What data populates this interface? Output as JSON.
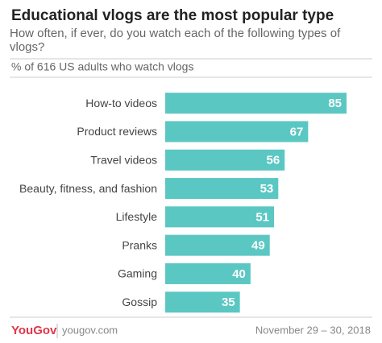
{
  "chart_data": {
    "type": "bar",
    "orientation": "horizontal",
    "title": "Educational vlogs are the most popular type",
    "subtitle": "How often, if ever, do you watch each of the following types of vlogs?",
    "note": "% of 616 US adults who watch vlogs",
    "categories": [
      "How-to videos",
      "Product reviews",
      "Travel videos",
      "Beauty, fitness, and fashion",
      "Lifestyle",
      "Pranks",
      "Gaming",
      "Gossip"
    ],
    "values": [
      85,
      67,
      56,
      53,
      51,
      49,
      40,
      35
    ],
    "color": "#5bc7c3"
  },
  "footer": {
    "brand": "YouGov",
    "site": "yougov.com",
    "date": "November 29 – 30, 2018"
  }
}
